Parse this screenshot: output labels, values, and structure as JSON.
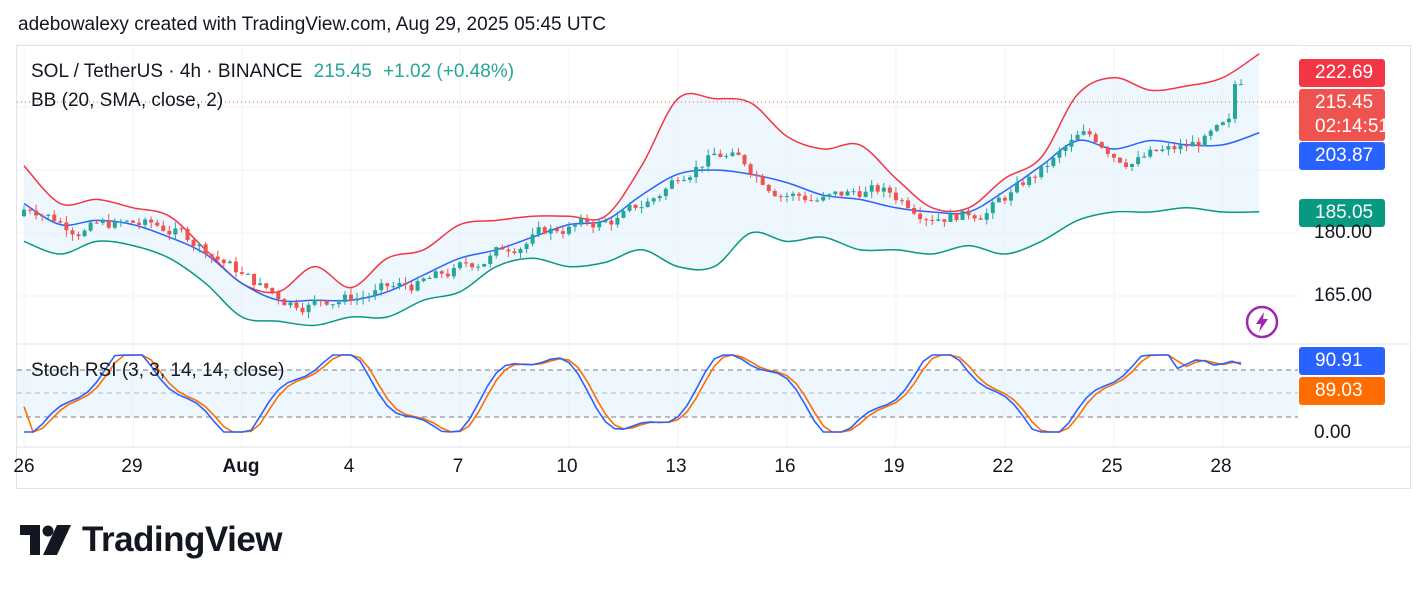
{
  "header": {
    "attribution": "adebowalexy created with TradingView.com, Aug 29, 2025 05:45 UTC"
  },
  "legend": {
    "symbol": "SOL / TetherUS · 4h · BINANCE",
    "last": "215.45",
    "change": "+1.02 (+0.48%)",
    "bb_label": "BB (20, SMA, close, 2)",
    "stoch_label": "Stoch RSI (3, 3, 14, 14, close)"
  },
  "price_tags": {
    "bb_upper": "222.69",
    "last": "215.45",
    "countdown": "02:14:51",
    "bb_basis": "203.87",
    "bb_lower": "185.05",
    "stoch_k": "90.91",
    "stoch_d": "89.03"
  },
  "price_axis": [
    "180.00",
    "165.00"
  ],
  "stoch_axis": [
    "0.00"
  ],
  "date_axis": [
    "26",
    "29",
    "Aug",
    "4",
    "7",
    "10",
    "13",
    "16",
    "19",
    "22",
    "25",
    "28"
  ],
  "brand": {
    "name": "TradingView"
  },
  "colors": {
    "bull": "#26a69a",
    "bear": "#ef5350",
    "bb_upper": "#f23645",
    "bb_basis": "#2962ff",
    "bb_lower": "#089981",
    "stoch_k": "#2962ff",
    "stoch_d": "#ff6d00",
    "fill": "#e3f2fd"
  },
  "chart_data": {
    "type": "candlestick",
    "symbol": "SOL / TetherUS",
    "interval": "4h",
    "exchange": "BINANCE",
    "x_range": [
      "Jul 26",
      "Aug 29"
    ],
    "price_range": [
      158,
      227
    ],
    "bollinger_bands": {
      "params": "20, SMA, close, 2",
      "upper": [
        [
          26,
          196
        ],
        [
          27,
          187
        ],
        [
          28,
          188
        ],
        [
          29,
          186
        ],
        [
          30,
          184
        ],
        [
          31,
          176
        ],
        [
          32,
          168
        ],
        [
          33,
          166
        ],
        [
          34,
          172
        ],
        [
          35,
          167
        ],
        [
          36,
          174
        ],
        [
          37,
          176
        ],
        [
          38,
          182
        ],
        [
          39,
          183
        ],
        [
          40,
          184
        ],
        [
          41,
          184
        ],
        [
          42,
          184
        ],
        [
          43,
          196
        ],
        [
          44,
          212
        ],
        [
          45,
          212
        ],
        [
          46,
          211
        ],
        [
          47,
          203
        ],
        [
          48,
          200
        ],
        [
          49,
          201
        ],
        [
          50,
          193
        ],
        [
          51,
          186
        ],
        [
          52,
          186
        ],
        [
          53,
          193
        ],
        [
          54,
          198
        ],
        [
          55,
          213
        ],
        [
          56,
          217
        ],
        [
          57,
          214
        ],
        [
          58,
          215
        ],
        [
          59,
          217
        ],
        [
          60,
          222.69
        ]
      ],
      "basis": [
        [
          26,
          187
        ],
        [
          27,
          182
        ],
        [
          28,
          183
        ],
        [
          29,
          182
        ],
        [
          30,
          179
        ],
        [
          31,
          175
        ],
        [
          32,
          168
        ],
        [
          33,
          164
        ],
        [
          34,
          164
        ],
        [
          35,
          164
        ],
        [
          36,
          166
        ],
        [
          37,
          170
        ],
        [
          38,
          174
        ],
        [
          39,
          176
        ],
        [
          40,
          179
        ],
        [
          41,
          182
        ],
        [
          42,
          183
        ],
        [
          43,
          189
        ],
        [
          44,
          194
        ],
        [
          45,
          195
        ],
        [
          46,
          194
        ],
        [
          47,
          192
        ],
        [
          48,
          189
        ],
        [
          49,
          188
        ],
        [
          50,
          186
        ],
        [
          51,
          185
        ],
        [
          52,
          185
        ],
        [
          53,
          190
        ],
        [
          54,
          196
        ],
        [
          55,
          202
        ],
        [
          56,
          200
        ],
        [
          57,
          202
        ],
        [
          58,
          201
        ],
        [
          59,
          201
        ],
        [
          60,
          203.87
        ]
      ],
      "lower": [
        [
          26,
          178
        ],
        [
          27,
          175
        ],
        [
          28,
          178
        ],
        [
          29,
          177
        ],
        [
          30,
          174
        ],
        [
          31,
          168
        ],
        [
          32,
          160
        ],
        [
          33,
          159
        ],
        [
          34,
          158
        ],
        [
          35,
          160
        ],
        [
          36,
          160
        ],
        [
          37,
          164
        ],
        [
          38,
          166
        ],
        [
          39,
          172
        ],
        [
          40,
          174
        ],
        [
          41,
          172
        ],
        [
          42,
          173
        ],
        [
          43,
          176
        ],
        [
          44,
          172
        ],
        [
          45,
          172
        ],
        [
          46,
          180
        ],
        [
          47,
          178
        ],
        [
          48,
          179
        ],
        [
          49,
          176
        ],
        [
          50,
          176
        ],
        [
          51,
          175
        ],
        [
          52,
          177
        ],
        [
          53,
          175
        ],
        [
          54,
          178
        ],
        [
          55,
          183
        ],
        [
          56,
          185
        ],
        [
          57,
          185
        ],
        [
          58,
          186
        ],
        [
          59,
          185
        ],
        [
          60,
          185.05
        ]
      ]
    },
    "stoch_rsi": {
      "params": "3, 3, 14, 14, close",
      "k_last": 90.91,
      "d_last": 89.03,
      "range": [
        0,
        100
      ]
    }
  }
}
